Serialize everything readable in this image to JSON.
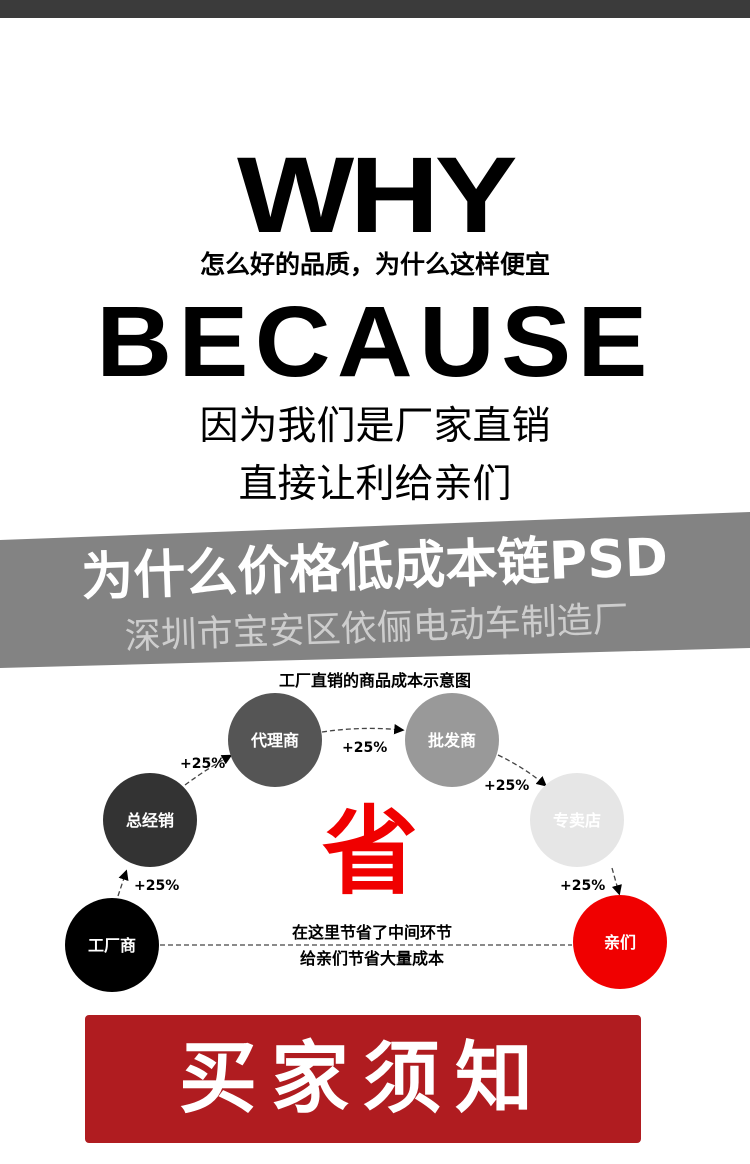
{
  "headline": "WHY",
  "question": "怎么好的品质，为什么这样便宜",
  "answer_heading": "BECAUSE",
  "answer_line1": "因为我们是厂家直销",
  "answer_line2": "直接让利给亲们",
  "diagram": {
    "title": "工厂直销的商品成本示意图",
    "nodes": [
      {
        "label": "工厂商",
        "color": "#000000"
      },
      {
        "label": "总经销",
        "color": "#333333"
      },
      {
        "label": "代理商",
        "color": "#555555"
      },
      {
        "label": "批发商",
        "color": "#999999"
      },
      {
        "label": "专卖店",
        "color": "#e6e6e6"
      },
      {
        "label": "亲们",
        "color": "#f00000"
      }
    ],
    "markups": [
      "+25%",
      "+25%",
      "+25%",
      "+25%",
      "+25%"
    ],
    "save_char": "省",
    "save_line1": "在这里节省了中间环节",
    "save_line2": "给亲们节省大量成本"
  },
  "banner": {
    "title": "为什么价格低成本链PSD",
    "watermark": "深圳市宝安区依俪电动车制造厂",
    "color": "#7a7a7a"
  },
  "buyer_notice_button": "买家须知",
  "accent": "#f00000",
  "button_color": "#b01c20"
}
